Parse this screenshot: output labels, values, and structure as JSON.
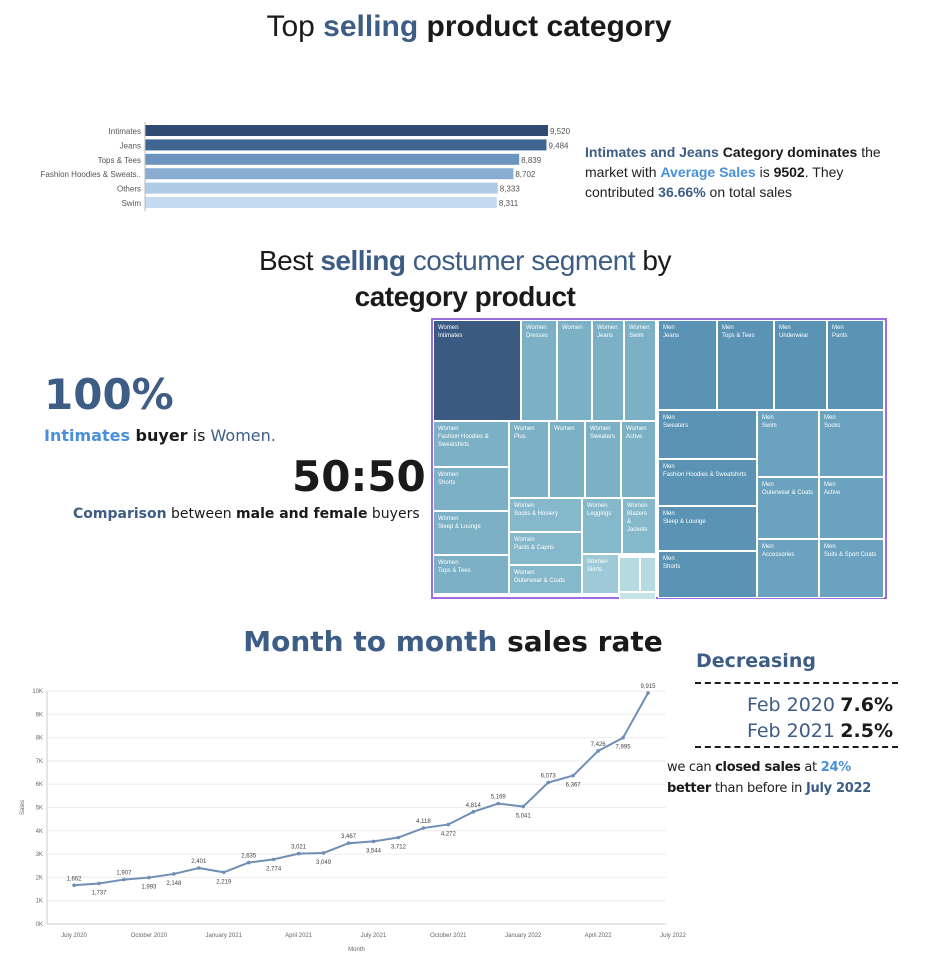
{
  "title_top": {
    "a": "Top ",
    "b": "selling",
    "c": " product category"
  },
  "title_segment": {
    "line1_a": "Best ",
    "line1_b": "selling",
    "line1_c": " costumer segment",
    "line1_d": " by",
    "line2": "category product"
  },
  "title_month": {
    "a": "Month to month",
    "b": " sales rate"
  },
  "chart_data": [
    {
      "type": "bar",
      "orientation": "horizontal",
      "categories": [
        "Intimates",
        "Jeans",
        "Tops & Tees",
        "Fashion Hoodies & Sweats..",
        "Others",
        "Swim"
      ],
      "values": [
        9520,
        9484,
        8839,
        8702,
        8333,
        8311
      ],
      "labels": [
        "9,520",
        "9,484",
        "8,839",
        "8,702",
        "8,333",
        "8,311"
      ],
      "colors": [
        "#2f4a73",
        "#3f6591",
        "#6d94bf",
        "#89acd2",
        "#aecbe6",
        "#c3daef"
      ]
    },
    {
      "type": "line",
      "xlabel": "Month",
      "ylabel": "Sales",
      "ylim": [
        0,
        10000
      ],
      "yticks": [
        "0K",
        "1K",
        "2K",
        "3K",
        "4K",
        "5K",
        "6K",
        "7K",
        "8K",
        "9K",
        "10K"
      ],
      "xticks": [
        "July 2020",
        "October 2020",
        "January 2021",
        "April 2021",
        "July 2021",
        "October 2021",
        "January 2022",
        "April 2022",
        "July 2022"
      ],
      "values": [
        1662,
        1737,
        1907,
        1993,
        2148,
        2401,
        2219,
        2635,
        2774,
        3021,
        3049,
        3467,
        3544,
        3712,
        4118,
        4272,
        4814,
        5169,
        5041,
        6073,
        6367,
        7426,
        7995,
        9915
      ],
      "labels": [
        "1,662",
        "1,737",
        "1,907",
        "1,993",
        "2,148",
        "2,401",
        "2,219",
        "2,635",
        "2,774",
        "3,021",
        "3,049",
        "3,467",
        "3,544",
        "3,712",
        "4,118",
        "4,272",
        "4,814",
        "5,169",
        "5,041",
        "6,073",
        "6,367",
        "7,426",
        "7,995",
        "9,915"
      ],
      "color": "#6f8fb4"
    }
  ],
  "insight": {
    "p1": "Intimates and Jeans",
    "p2": " Category dominates",
    "p3": " the market with ",
    "p4": "Average Sales",
    "p5": " is ",
    "p6": "9502",
    "p7": ". They contributed ",
    "p8": "36.66%",
    "p9": " on total sales"
  },
  "stat_women": {
    "value": "100%",
    "d1": "Intimates",
    "d2": " buyer",
    "d3": " is ",
    "d4": "Women."
  },
  "stat_ratio": {
    "value": "50:50",
    "d1": "Comparison",
    "d2": " between ",
    "d3": "male and female",
    "d4": " buyers"
  },
  "treemap": [
    {
      "l1": "Women",
      "l2": "Intimates",
      "color": "#3a5a82"
    },
    {
      "l1": "Women",
      "l2": "Dresses",
      "color": "#7bb0c5"
    },
    {
      "l1": "Women",
      "l2": "",
      "color": "#7bb0c5"
    },
    {
      "l1": "Women",
      "l2": "Jeans",
      "color": "#7bb0c5"
    },
    {
      "l1": "Women",
      "l2": "Swim",
      "color": "#7bb0c5"
    },
    {
      "l1": "Men",
      "l2": "Jeans",
      "color": "#5a93b4"
    },
    {
      "l1": "Men",
      "l2": "Tops & Tees",
      "color": "#5a93b4"
    },
    {
      "l1": "Men",
      "l2": "Underwear",
      "color": "#5a93b4"
    },
    {
      "l1": "Men",
      "l2": "Pants",
      "color": "#5a93b4"
    },
    {
      "l1": "Women",
      "l2": "Fashion Hoodies & Sweatshirts",
      "color": "#7bb0c5"
    },
    {
      "l1": "Women",
      "l2": "Plus",
      "color": "#7bb0c5"
    },
    {
      "l1": "Women",
      "l2": "",
      "color": "#7bb0c5"
    },
    {
      "l1": "Women",
      "l2": "Sweaters",
      "color": "#7bb0c5"
    },
    {
      "l1": "Women",
      "l2": "Active",
      "color": "#7bb0c5"
    },
    {
      "l1": "Men",
      "l2": "Sweaters",
      "color": "#5a93b4"
    },
    {
      "l1": "Men",
      "l2": "Swim",
      "color": "#6aa2bf"
    },
    {
      "l1": "Men",
      "l2": "Socks",
      "color": "#6aa2bf"
    },
    {
      "l1": "Women",
      "l2": "Shorts",
      "color": "#7bb0c5"
    },
    {
      "l1": "Men",
      "l2": "Fashion Hoodies & Sweatshirts",
      "color": "#5a93b4"
    },
    {
      "l1": "Men",
      "l2": "Outerwear & Coats",
      "color": "#6aa2bf"
    },
    {
      "l1": "Men",
      "l2": "Active",
      "color": "#6aa2bf"
    },
    {
      "l1": "Women",
      "l2": "Socks & Hosiery",
      "color": "#85b8cb"
    },
    {
      "l1": "Women",
      "l2": "Leggings",
      "color": "#85b8cb"
    },
    {
      "l1": "Women",
      "l2": "Blazers & Jackets",
      "color": "#85b8cb"
    },
    {
      "l1": "Women",
      "l2": "Sleep & Lounge",
      "color": "#7bb0c5"
    },
    {
      "l1": "Women",
      "l2": "Pants & Capris",
      "color": "#85b8cb"
    },
    {
      "l1": "Men",
      "l2": "Sleep & Lounge",
      "color": "#5a93b4"
    },
    {
      "l1": "Men",
      "l2": "Accessories",
      "color": "#6aa2bf"
    },
    {
      "l1": "Men",
      "l2": "Suits & Sport Coats",
      "color": "#6aa2bf"
    },
    {
      "l1": "Women",
      "l2": "Skirts",
      "color": "#9dcad6"
    },
    {
      "l1": "Women",
      "l2": "Tops & Tees",
      "color": "#7bb0c5"
    },
    {
      "l1": "Women",
      "l2": "Outerwear & Coats",
      "color": "#85b8cb"
    },
    {
      "l1": "Men",
      "l2": "Shorts",
      "color": "#5a93b4"
    },
    {
      "l1": "",
      "l2": "",
      "color": "#b5dbe0"
    },
    {
      "l1": "",
      "l2": "",
      "color": "#b5dbe0"
    },
    {
      "l1": "",
      "l2": "",
      "color": "#c6e4e6"
    }
  ],
  "decreasing": {
    "title": "Decreasing",
    "r1_label": "Feb 2020",
    "r1_value": "7.6%",
    "r2_label": "Feb 2021",
    "r2_value": "2.5%"
  },
  "closing": {
    "a": "we can ",
    "b": "closed sales",
    "c": " at ",
    "d": "24%",
    "e": "better",
    "f": " than before in ",
    "g": "July 2022"
  }
}
